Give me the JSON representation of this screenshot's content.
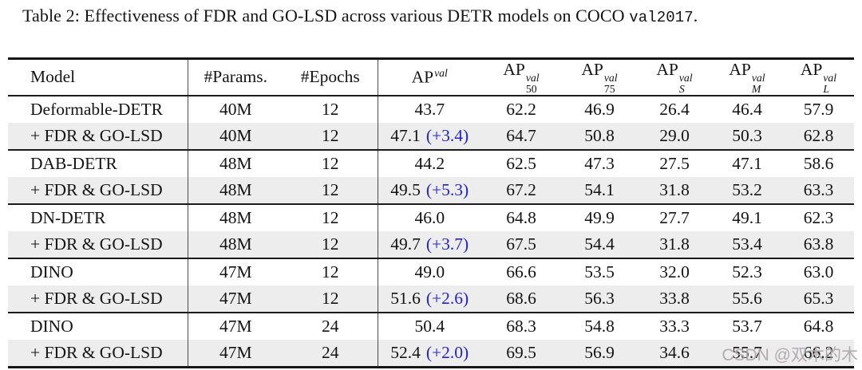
{
  "caption": {
    "prefix": "Table 2: Effectiveness of FDR and GO-LSD across various DETR models on COCO ",
    "code": "val2017",
    "suffix": "."
  },
  "colors": {
    "delta_blue": "#2323cd",
    "row_shade": "#ededee",
    "rule_black": "#161616",
    "watermark_gray": "#afa8ac"
  },
  "watermark": {
    "text": "CSDN @双木的木"
  },
  "table": {
    "headers": [
      {
        "label": "Model"
      },
      {
        "label": "#Params."
      },
      {
        "label": "#Epochs"
      },
      {
        "base": "AP",
        "sup": "val",
        "sub": ""
      },
      {
        "base": "AP",
        "sup": "val",
        "sub": "50"
      },
      {
        "base": "AP",
        "sup": "val",
        "sub": "75"
      },
      {
        "base": "AP",
        "sup": "val",
        "sub": "S"
      },
      {
        "base": "AP",
        "sup": "val",
        "sub": "M"
      },
      {
        "base": "AP",
        "sup": "val",
        "sub": "L"
      }
    ],
    "groups": [
      {
        "rows": [
          {
            "model": "Deformable-DETR",
            "params": "40M",
            "epochs": "12",
            "ap": "43.7",
            "delta": "",
            "ap50": "62.2",
            "ap75": "46.9",
            "aps": "26.4",
            "apm": "46.4",
            "apl": "57.9",
            "shaded": false
          },
          {
            "model": "+ FDR & GO-LSD",
            "params": "40M",
            "epochs": "12",
            "ap": "47.1",
            "delta": "(+3.4)",
            "ap50": "64.7",
            "ap75": "50.8",
            "aps": "29.0",
            "apm": "50.3",
            "apl": "62.8",
            "shaded": true
          }
        ]
      },
      {
        "rows": [
          {
            "model": "DAB-DETR",
            "params": "48M",
            "epochs": "12",
            "ap": "44.2",
            "delta": "",
            "ap50": "62.5",
            "ap75": "47.3",
            "aps": "27.5",
            "apm": "47.1",
            "apl": "58.6",
            "shaded": false
          },
          {
            "model": "+ FDR & GO-LSD",
            "params": "48M",
            "epochs": "12",
            "ap": "49.5",
            "delta": "(+5.3)",
            "ap50": "67.2",
            "ap75": "54.1",
            "aps": "31.8",
            "apm": "53.2",
            "apl": "63.3",
            "shaded": true
          }
        ]
      },
      {
        "rows": [
          {
            "model": "DN-DETR",
            "params": "48M",
            "epochs": "12",
            "ap": "46.0",
            "delta": "",
            "ap50": "64.8",
            "ap75": "49.9",
            "aps": "27.7",
            "apm": "49.1",
            "apl": "62.3",
            "shaded": false
          },
          {
            "model": "+ FDR & GO-LSD",
            "params": "48M",
            "epochs": "12",
            "ap": "49.7",
            "delta": "(+3.7)",
            "ap50": "67.5",
            "ap75": "54.4",
            "aps": "31.8",
            "apm": "53.4",
            "apl": "63.8",
            "shaded": true
          }
        ]
      },
      {
        "rows": [
          {
            "model": "DINO",
            "params": "47M",
            "epochs": "12",
            "ap": "49.0",
            "delta": "",
            "ap50": "66.6",
            "ap75": "53.5",
            "aps": "32.0",
            "apm": "52.3",
            "apl": "63.0",
            "shaded": false
          },
          {
            "model": "+ FDR & GO-LSD",
            "params": "47M",
            "epochs": "12",
            "ap": "51.6",
            "delta": "(+2.6)",
            "ap50": "68.6",
            "ap75": "56.3",
            "aps": "33.8",
            "apm": "55.6",
            "apl": "65.3",
            "shaded": true
          }
        ]
      },
      {
        "rows": [
          {
            "model": "DINO",
            "params": "47M",
            "epochs": "24",
            "ap": "50.4",
            "delta": "",
            "ap50": "68.3",
            "ap75": "54.8",
            "aps": "33.3",
            "apm": "53.7",
            "apl": "64.8",
            "shaded": false
          },
          {
            "model": "+ FDR & GO-LSD",
            "params": "47M",
            "epochs": "24",
            "ap": "52.4",
            "delta": "(+2.0)",
            "ap50": "69.5",
            "ap75": "56.9",
            "aps": "34.6",
            "apm": "55.7",
            "apl": "66.2",
            "shaded": true
          }
        ]
      }
    ]
  }
}
